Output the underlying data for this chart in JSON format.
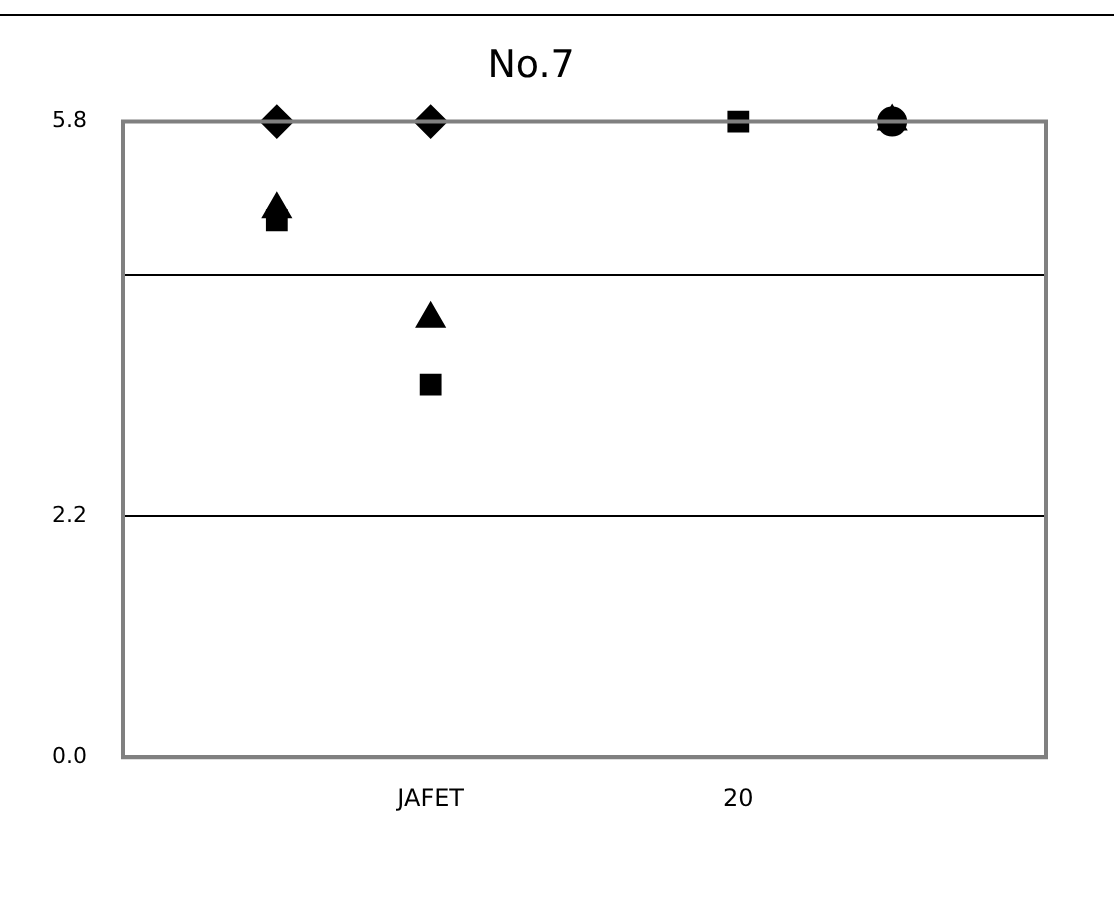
{
  "chart_data": {
    "type": "scatter",
    "title": "No.7",
    "categories": [
      null,
      null,
      "JAFET",
      null,
      "20",
      null,
      null
    ],
    "ylim": [
      0,
      5.8
    ],
    "yticks": [
      {
        "value": 0,
        "label": "0.0"
      },
      2.2,
      {
        "value": 4.4,
        "label": null
      },
      5.8
    ],
    "grid": "y",
    "series": [
      {
        "color": "#000000",
        "marker": "diamond",
        "values": [
          null,
          5.8,
          5.8,
          null,
          null,
          null,
          null
        ]
      },
      {
        "color": "#000000",
        "marker": "square",
        "values": [
          null,
          4.9,
          3.4,
          null,
          null,
          null,
          null
        ]
      },
      {
        "color": "#000000",
        "marker": "triangle",
        "values": [
          null,
          5.0,
          4.0,
          null,
          null,
          null,
          null
        ]
      },
      {
        "color": "#000000",
        "marker": "square",
        "values": [
          null,
          null,
          null,
          null,
          5.8,
          null,
          null
        ]
      },
      {
        "color": "#000000",
        "marker": "circle",
        "values": [
          null,
          null,
          null,
          null,
          null,
          5.8,
          null
        ]
      },
      {
        "color": "#000000",
        "marker": "triangle",
        "values": [
          null,
          null,
          null,
          null,
          null,
          5.8,
          null
        ]
      }
    ]
  }
}
